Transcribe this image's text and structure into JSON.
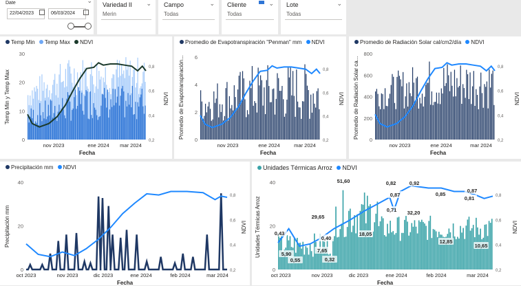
{
  "colors": {
    "dark_blue": "#1f3864",
    "mid_blue": "#2e75d6",
    "light_blue": "#6fa8f5",
    "line_blue": "#1e88ff",
    "dark_green": "#1b3a2c",
    "teal": "#3aa3a8"
  },
  "slicers": {
    "date": {
      "title": "Date",
      "start": "22/04/2023",
      "end": "06/03/2024"
    },
    "variedad": {
      "title": "Variedad II",
      "value": "Merin"
    },
    "campo": {
      "title": "Campo",
      "value": "Todas"
    },
    "cliente": {
      "title": "Cliente",
      "value": "Todas"
    },
    "lote": {
      "title": "Lote",
      "value": "Todas"
    }
  },
  "panel1": {
    "legend": [
      "Temp Min",
      "Temp Max",
      "NDVI"
    ],
    "ytitle": "Temp Min y Temp Max",
    "y2title": "NDVI",
    "xtitle": "Fecha",
    "yticks": [
      "0",
      "10",
      "20",
      "30"
    ],
    "y2ticks": [
      "0,2",
      "0,4",
      "0,6",
      "0,8"
    ],
    "xticks": [
      "nov 2023",
      "ene 2024",
      "mar 2024"
    ]
  },
  "panel2": {
    "legend": [
      "Promedio de Evapotranspiración \"Penman\" mm",
      "NDVI"
    ],
    "ytitle": "Promedio de Evapotranspiración...",
    "y2title": "NDVI",
    "xtitle": "Fecha",
    "yticks": [
      "0",
      "2",
      "4",
      "6"
    ],
    "y2ticks": [
      "0,2",
      "0,4",
      "0,6",
      "0,8"
    ],
    "xticks": [
      "nov 2023",
      "ene 2024",
      "mar 2024"
    ]
  },
  "panel3": {
    "legend": [
      "Promedio de Radiación Solar cal/cm2/día",
      "NDVI"
    ],
    "ytitle": "Promedio de Radiación Solar ca...",
    "y2title": "NDVI",
    "xtitle": "Fecha",
    "yticks": [
      "0",
      "200",
      "400",
      "600",
      "800"
    ],
    "y2ticks": [
      "0,2",
      "0,4",
      "0,6",
      "0,8"
    ],
    "xticks": [
      "nov 2023",
      "ene 2024",
      "mar 2024"
    ]
  },
  "panel4": {
    "legend": [
      "Precipitación mm",
      "NDVI"
    ],
    "ytitle": "Precipitación mm",
    "y2title": "NDVI",
    "xtitle": "Fecha",
    "yticks": [
      "0",
      "20",
      "40"
    ],
    "y2ticks": [
      "0,2",
      "0,4",
      "0,6",
      "0,8"
    ],
    "xticks": [
      "oct 2023",
      "nov 2023",
      "dic 2023",
      "ene 2024",
      "feb 2024",
      "mar 2024"
    ]
  },
  "panel5": {
    "legend": [
      "Unidades Térmicas Arroz",
      "NDVI"
    ],
    "ytitle": "Unidades Térmicas Arroz",
    "y2title": "NDVI",
    "xtitle": "Fecha",
    "yticks": [
      "0",
      "20",
      "40"
    ],
    "y2ticks": [
      "0,2",
      "0,4",
      "0,6",
      "0,8"
    ],
    "xticks": [
      "oct 2023",
      "nov 2023",
      "dic 2023",
      "ene 2024",
      "feb 2024",
      "mar 2024"
    ],
    "labels": [
      "0,43",
      "5,90",
      "0,55",
      "29,65",
      "7,65",
      "0,40",
      "0,32",
      "51,60",
      "18,05",
      "0,82",
      "0,87",
      "0,71",
      "0,92",
      "32,20",
      "12,85",
      "0,85",
      "0,87",
      "0,81",
      "10,65"
    ]
  },
  "chart_data": [
    {
      "type": "bar",
      "title": "",
      "series": [
        {
          "name": "Temp Min",
          "values": "daily bars 8-22"
        },
        {
          "name": "Temp Max",
          "values": "daily bars 20-35"
        },
        {
          "name": "NDVI",
          "values": [
            0.42,
            0.32,
            0.35,
            0.55,
            0.8,
            0.85,
            0.84,
            0.8
          ]
        }
      ],
      "ylim": [
        0,
        35
      ],
      "y2lim": [
        0.2,
        0.9
      ]
    },
    {
      "type": "bar",
      "title": "",
      "series": [
        {
          "name": "Promedio de Evapotranspiración \"Penman\" mm",
          "values": "daily 2-6.5"
        },
        {
          "name": "NDVI"
        }
      ],
      "ylim": [
        0,
        7
      ]
    },
    {
      "type": "bar",
      "title": "",
      "series": [
        {
          "name": "Promedio de Radiación Solar cal/cm2/día",
          "values": "daily 300-800"
        },
        {
          "name": "NDVI"
        }
      ],
      "ylim": [
        0,
        850
      ]
    },
    {
      "type": "bar",
      "title": "",
      "series": [
        {
          "name": "Precipitación mm",
          "values": "sparse spikes 0-52"
        },
        {
          "name": "NDVI"
        }
      ],
      "ylim": [
        0,
        55
      ]
    },
    {
      "type": "bar",
      "title": "",
      "series": [
        {
          "name": "Unidades Térmicas Arroz",
          "values": [
            5.9,
            29.65,
            7.65,
            51.6,
            18.05,
            32.2,
            12.85,
            10.65
          ]
        },
        {
          "name": "NDVI",
          "values": [
            0.43,
            0.55,
            0.4,
            0.32,
            0.82,
            0.71,
            0.87,
            0.92,
            0.85,
            0.87,
            0.81
          ]
        }
      ],
      "ylim": [
        0,
        55
      ]
    }
  ]
}
